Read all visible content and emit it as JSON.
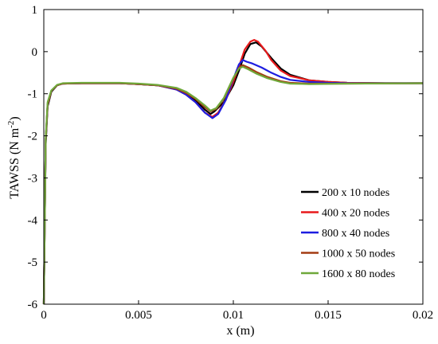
{
  "chart_data": {
    "type": "line",
    "xlabel": "x (m)",
    "ylabel": "TAWSS (N m",
    "ylabel_sup": "-2",
    "ylabel_close": ")",
    "xlim": [
      0,
      0.02
    ],
    "ylim": [
      -6,
      1
    ],
    "xticks": [
      0,
      0.005,
      0.01,
      0.015,
      0.02
    ],
    "xtick_labels": [
      "0",
      "0.005",
      "0.01",
      "0.015",
      "0.02"
    ],
    "yticks": [
      1,
      0,
      -1,
      -2,
      -3,
      -4,
      -5,
      -6
    ],
    "ytick_labels": [
      "1",
      "0",
      "-1",
      "-2",
      "-3",
      "-4",
      "-5",
      "-6"
    ],
    "grid": false,
    "legend_position": "bottom-right",
    "series": [
      {
        "name": "200 x 10 nodes",
        "color": "#000000",
        "points": [
          [
            0,
            -6
          ],
          [
            0.0001,
            -2.2
          ],
          [
            0.0002,
            -1.3
          ],
          [
            0.0004,
            -0.95
          ],
          [
            0.0007,
            -0.8
          ],
          [
            0.001,
            -0.76
          ],
          [
            0.002,
            -0.75
          ],
          [
            0.003,
            -0.75
          ],
          [
            0.004,
            -0.75
          ],
          [
            0.005,
            -0.77
          ],
          [
            0.006,
            -0.8
          ],
          [
            0.007,
            -0.88
          ],
          [
            0.0075,
            -0.98
          ],
          [
            0.008,
            -1.15
          ],
          [
            0.0085,
            -1.38
          ],
          [
            0.0088,
            -1.48
          ],
          [
            0.009,
            -1.42
          ],
          [
            0.0095,
            -1.2
          ],
          [
            0.01,
            -0.8
          ],
          [
            0.0103,
            -0.45
          ],
          [
            0.0106,
            -0.05
          ],
          [
            0.0109,
            0.18
          ],
          [
            0.0112,
            0.22
          ],
          [
            0.0115,
            0.12
          ],
          [
            0.012,
            -0.15
          ],
          [
            0.0125,
            -0.4
          ],
          [
            0.013,
            -0.55
          ],
          [
            0.014,
            -0.68
          ],
          [
            0.015,
            -0.72
          ],
          [
            0.016,
            -0.74
          ],
          [
            0.018,
            -0.75
          ],
          [
            0.02,
            -0.75
          ]
        ]
      },
      {
        "name": "400 x 20 nodes",
        "color": "#e8191b",
        "points": [
          [
            0,
            -6
          ],
          [
            0.0001,
            -2.1
          ],
          [
            0.0002,
            -1.25
          ],
          [
            0.0004,
            -0.93
          ],
          [
            0.0007,
            -0.8
          ],
          [
            0.001,
            -0.76
          ],
          [
            0.002,
            -0.75
          ],
          [
            0.003,
            -0.75
          ],
          [
            0.004,
            -0.75
          ],
          [
            0.005,
            -0.77
          ],
          [
            0.006,
            -0.8
          ],
          [
            0.007,
            -0.9
          ],
          [
            0.0075,
            -1.02
          ],
          [
            0.008,
            -1.2
          ],
          [
            0.0085,
            -1.45
          ],
          [
            0.0089,
            -1.55
          ],
          [
            0.0092,
            -1.45
          ],
          [
            0.0096,
            -1.15
          ],
          [
            0.01,
            -0.72
          ],
          [
            0.0103,
            -0.35
          ],
          [
            0.0106,
            0.05
          ],
          [
            0.0109,
            0.24
          ],
          [
            0.0111,
            0.28
          ],
          [
            0.0113,
            0.24
          ],
          [
            0.0117,
            0.02
          ],
          [
            0.012,
            -0.2
          ],
          [
            0.0125,
            -0.45
          ],
          [
            0.013,
            -0.58
          ],
          [
            0.014,
            -0.68
          ],
          [
            0.015,
            -0.72
          ],
          [
            0.016,
            -0.74
          ],
          [
            0.018,
            -0.75
          ],
          [
            0.02,
            -0.75
          ]
        ]
      },
      {
        "name": "800 x 40 nodes",
        "color": "#1d1de0",
        "points": [
          [
            0,
            -6
          ],
          [
            0.0001,
            -2.1
          ],
          [
            0.0002,
            -1.25
          ],
          [
            0.0004,
            -0.93
          ],
          [
            0.0007,
            -0.8
          ],
          [
            0.001,
            -0.76
          ],
          [
            0.002,
            -0.75
          ],
          [
            0.003,
            -0.75
          ],
          [
            0.004,
            -0.75
          ],
          [
            0.005,
            -0.77
          ],
          [
            0.006,
            -0.8
          ],
          [
            0.007,
            -0.9
          ],
          [
            0.0075,
            -1.02
          ],
          [
            0.008,
            -1.2
          ],
          [
            0.0085,
            -1.45
          ],
          [
            0.0089,
            -1.58
          ],
          [
            0.0092,
            -1.48
          ],
          [
            0.0096,
            -1.15
          ],
          [
            0.01,
            -0.65
          ],
          [
            0.0103,
            -0.3
          ],
          [
            0.0105,
            -0.2
          ],
          [
            0.0107,
            -0.24
          ],
          [
            0.011,
            -0.28
          ],
          [
            0.0115,
            -0.38
          ],
          [
            0.012,
            -0.5
          ],
          [
            0.0125,
            -0.6
          ],
          [
            0.013,
            -0.67
          ],
          [
            0.014,
            -0.72
          ],
          [
            0.015,
            -0.74
          ],
          [
            0.016,
            -0.75
          ],
          [
            0.02,
            -0.75
          ]
        ]
      },
      {
        "name": "1000 x 50 nodes",
        "color": "#a33b12",
        "points": [
          [
            0,
            -6
          ],
          [
            0.0001,
            -2.1
          ],
          [
            0.0002,
            -1.25
          ],
          [
            0.0004,
            -0.93
          ],
          [
            0.0007,
            -0.8
          ],
          [
            0.001,
            -0.76
          ],
          [
            0.002,
            -0.75
          ],
          [
            0.003,
            -0.75
          ],
          [
            0.004,
            -0.75
          ],
          [
            0.005,
            -0.77
          ],
          [
            0.006,
            -0.8
          ],
          [
            0.007,
            -0.88
          ],
          [
            0.0075,
            -0.98
          ],
          [
            0.008,
            -1.12
          ],
          [
            0.0085,
            -1.32
          ],
          [
            0.0088,
            -1.42
          ],
          [
            0.0091,
            -1.36
          ],
          [
            0.0095,
            -1.12
          ],
          [
            0.01,
            -0.65
          ],
          [
            0.0103,
            -0.38
          ],
          [
            0.0105,
            -0.32
          ],
          [
            0.0108,
            -0.38
          ],
          [
            0.0112,
            -0.48
          ],
          [
            0.0118,
            -0.6
          ],
          [
            0.0125,
            -0.7
          ],
          [
            0.013,
            -0.74
          ],
          [
            0.014,
            -0.76
          ],
          [
            0.016,
            -0.76
          ],
          [
            0.02,
            -0.75
          ]
        ]
      },
      {
        "name": "1600 x 80 nodes",
        "color": "#6fa83a",
        "points": [
          [
            0,
            -6
          ],
          [
            0.0001,
            -2.05
          ],
          [
            0.0002,
            -1.2
          ],
          [
            0.0004,
            -0.92
          ],
          [
            0.0007,
            -0.79
          ],
          [
            0.001,
            -0.75
          ],
          [
            0.002,
            -0.74
          ],
          [
            0.003,
            -0.74
          ],
          [
            0.004,
            -0.74
          ],
          [
            0.005,
            -0.76
          ],
          [
            0.006,
            -0.79
          ],
          [
            0.007,
            -0.86
          ],
          [
            0.0075,
            -0.95
          ],
          [
            0.008,
            -1.1
          ],
          [
            0.0085,
            -1.28
          ],
          [
            0.0088,
            -1.4
          ],
          [
            0.0091,
            -1.34
          ],
          [
            0.0095,
            -1.1
          ],
          [
            0.01,
            -0.62
          ],
          [
            0.0103,
            -0.4
          ],
          [
            0.0105,
            -0.36
          ],
          [
            0.0108,
            -0.42
          ],
          [
            0.0112,
            -0.52
          ],
          [
            0.0118,
            -0.63
          ],
          [
            0.0125,
            -0.72
          ],
          [
            0.013,
            -0.76
          ],
          [
            0.014,
            -0.77
          ],
          [
            0.016,
            -0.76
          ],
          [
            0.02,
            -0.75
          ]
        ]
      }
    ]
  }
}
